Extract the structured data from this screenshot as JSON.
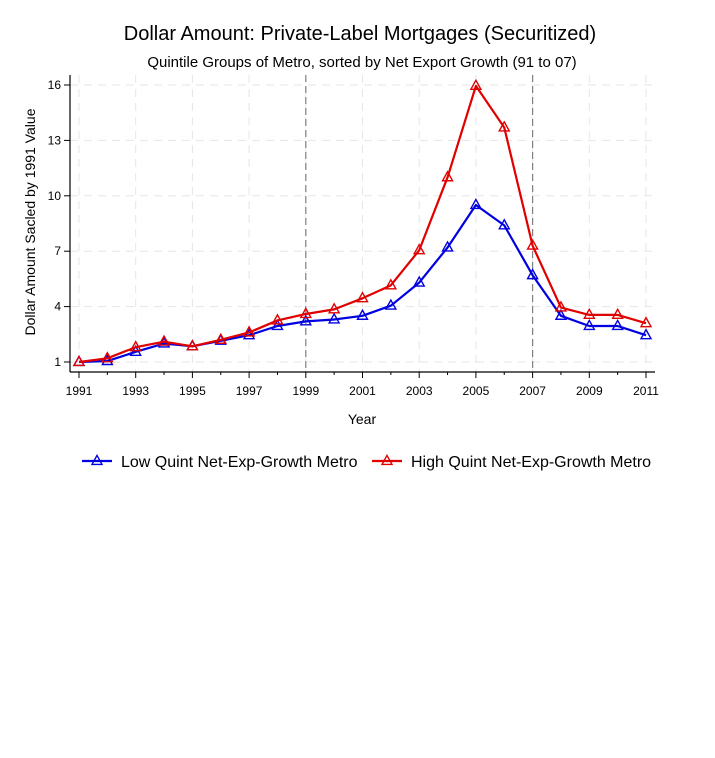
{
  "chart_data": {
    "type": "line",
    "title": "Dollar Amount: Private-Label Mortgages (Securitized)",
    "subtitle": "Quintile Groups of Metro, sorted by Net Export Growth (91 to 07)",
    "xlabel": "Year",
    "ylabel": "Dollar Amount Sacled by 1991 Value",
    "x": [
      1991,
      1992,
      1993,
      1994,
      1995,
      1996,
      1997,
      1998,
      1999,
      2000,
      2001,
      2002,
      2003,
      2004,
      2005,
      2006,
      2007,
      2008,
      2009,
      2010,
      2011
    ],
    "x_ticks": [
      "1991",
      "1993",
      "1995",
      "1997",
      "1999",
      "2001",
      "2003",
      "2005",
      "2007",
      "2009",
      "2011"
    ],
    "y_ticks": [
      "1",
      "4",
      "7",
      "10",
      "13",
      "16"
    ],
    "xlim": [
      1991,
      2011
    ],
    "ylim": [
      1,
      16
    ],
    "grid": true,
    "vertical_reference_lines": [
      1999,
      2007
    ],
    "legend_position": "bottom",
    "series": [
      {
        "name": "Low Quint Net-Exp-Growth Metro",
        "color": "#0000e0",
        "marker": "triangle",
        "values": [
          1.0,
          1.05,
          1.55,
          2.0,
          1.85,
          2.15,
          2.45,
          2.95,
          3.2,
          3.3,
          3.5,
          4.05,
          5.3,
          7.2,
          9.5,
          8.4,
          5.7,
          3.5,
          2.95,
          2.95,
          2.45
        ]
      },
      {
        "name": "High Quint Net-Exp-Growth Metro",
        "color": "#e00000",
        "marker": "triangle",
        "values": [
          1.0,
          1.2,
          1.8,
          2.1,
          1.85,
          2.2,
          2.6,
          3.25,
          3.6,
          3.85,
          4.45,
          5.15,
          7.05,
          11.0,
          15.95,
          13.7,
          7.3,
          3.95,
          3.55,
          3.55,
          3.1
        ]
      }
    ]
  }
}
